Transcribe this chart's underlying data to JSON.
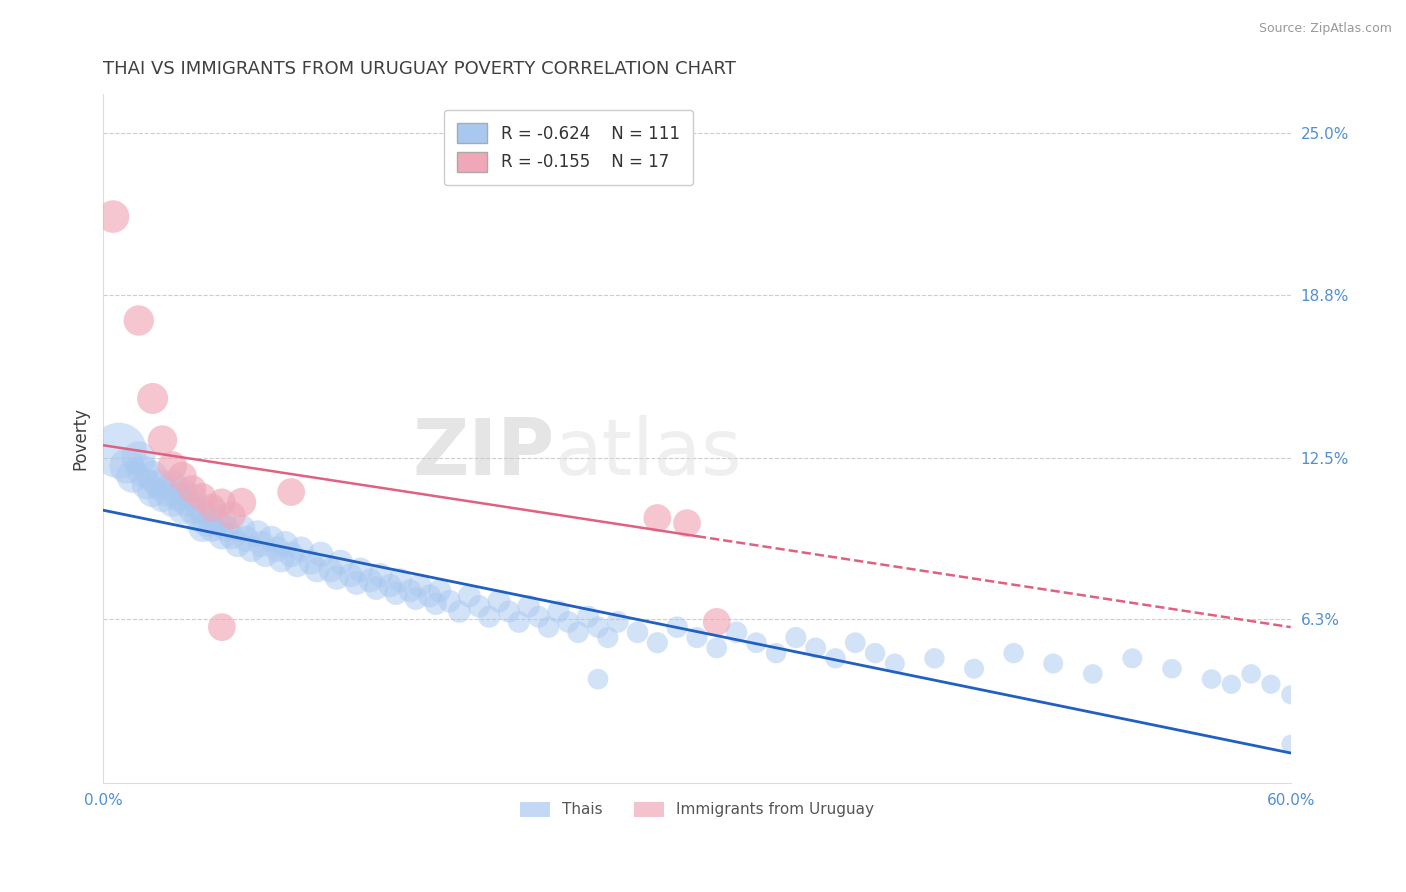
{
  "title": "THAI VS IMMIGRANTS FROM URUGUAY POVERTY CORRELATION CHART",
  "source": "Source: ZipAtlas.com",
  "ylabel": "Poverty",
  "xlim": [
    0.0,
    0.6
  ],
  "ylim": [
    0.0,
    0.265
  ],
  "xticks": [
    0.0,
    0.1,
    0.2,
    0.3,
    0.4,
    0.5,
    0.6
  ],
  "xticklabels": [
    "0.0%",
    "",
    "",
    "",
    "",
    "",
    "60.0%"
  ],
  "yticks": [
    0.063,
    0.125,
    0.188,
    0.25
  ],
  "yticklabels": [
    "6.3%",
    "12.5%",
    "18.8%",
    "25.0%"
  ],
  "grid_color": "#c8c8c8",
  "background_color": "#ffffff",
  "watermark_zip": "ZIP",
  "watermark_atlas": "atlas",
  "legend_r1": "R = -0.624",
  "legend_n1": "N = 111",
  "legend_r2": "R = -0.155",
  "legend_n2": "N = 17",
  "color_thai": "#a8c8f0",
  "color_uruguay": "#f0a8b8",
  "color_thai_line": "#2060c0",
  "color_uruguay_line": "#e06080",
  "title_color": "#404040",
  "ylabel_color": "#404040",
  "tick_label_color": "#5090d0",
  "source_color": "#999999",
  "legend_text_color": "#333333",
  "thai_x": [
    0.008,
    0.012,
    0.015,
    0.018,
    0.02,
    0.022,
    0.025,
    0.025,
    0.028,
    0.03,
    0.032,
    0.035,
    0.035,
    0.038,
    0.04,
    0.04,
    0.042,
    0.045,
    0.045,
    0.048,
    0.05,
    0.05,
    0.052,
    0.055,
    0.055,
    0.058,
    0.06,
    0.06,
    0.062,
    0.065,
    0.068,
    0.07,
    0.072,
    0.075,
    0.078,
    0.08,
    0.082,
    0.085,
    0.088,
    0.09,
    0.092,
    0.095,
    0.098,
    0.1,
    0.105,
    0.108,
    0.11,
    0.115,
    0.118,
    0.12,
    0.125,
    0.128,
    0.13,
    0.135,
    0.138,
    0.14,
    0.145,
    0.148,
    0.15,
    0.155,
    0.158,
    0.16,
    0.165,
    0.168,
    0.17,
    0.175,
    0.18,
    0.185,
    0.19,
    0.195,
    0.2,
    0.205,
    0.21,
    0.215,
    0.22,
    0.225,
    0.23,
    0.235,
    0.24,
    0.245,
    0.25,
    0.255,
    0.26,
    0.27,
    0.28,
    0.29,
    0.3,
    0.31,
    0.32,
    0.33,
    0.34,
    0.35,
    0.36,
    0.37,
    0.38,
    0.39,
    0.4,
    0.42,
    0.44,
    0.46,
    0.48,
    0.5,
    0.52,
    0.54,
    0.56,
    0.57,
    0.58,
    0.59,
    0.6,
    0.6,
    0.25
  ],
  "thai_y": [
    0.128,
    0.122,
    0.118,
    0.125,
    0.12,
    0.115,
    0.118,
    0.112,
    0.115,
    0.11,
    0.112,
    0.108,
    0.115,
    0.11,
    0.105,
    0.112,
    0.108,
    0.105,
    0.11,
    0.102,
    0.098,
    0.105,
    0.1,
    0.098,
    0.105,
    0.1,
    0.095,
    0.102,
    0.098,
    0.095,
    0.092,
    0.098,
    0.094,
    0.09,
    0.096,
    0.092,
    0.088,
    0.094,
    0.09,
    0.086,
    0.092,
    0.088,
    0.084,
    0.09,
    0.085,
    0.082,
    0.088,
    0.082,
    0.079,
    0.085,
    0.08,
    0.077,
    0.082,
    0.078,
    0.075,
    0.08,
    0.076,
    0.073,
    0.078,
    0.074,
    0.071,
    0.076,
    0.072,
    0.069,
    0.074,
    0.07,
    0.066,
    0.072,
    0.068,
    0.064,
    0.07,
    0.066,
    0.062,
    0.068,
    0.064,
    0.06,
    0.066,
    0.062,
    0.058,
    0.064,
    0.06,
    0.056,
    0.062,
    0.058,
    0.054,
    0.06,
    0.056,
    0.052,
    0.058,
    0.054,
    0.05,
    0.056,
    0.052,
    0.048,
    0.054,
    0.05,
    0.046,
    0.048,
    0.044,
    0.05,
    0.046,
    0.042,
    0.048,
    0.044,
    0.04,
    0.038,
    0.042,
    0.038,
    0.034,
    0.015,
    0.04
  ],
  "thai_size": [
    200,
    80,
    70,
    75,
    65,
    60,
    65,
    60,
    60,
    58,
    55,
    55,
    55,
    52,
    52,
    55,
    50,
    50,
    52,
    48,
    48,
    52,
    48,
    48,
    50,
    46,
    46,
    50,
    46,
    45,
    45,
    48,
    44,
    44,
    46,
    44,
    42,
    44,
    42,
    42,
    44,
    42,
    40,
    42,
    40,
    40,
    42,
    40,
    38,
    40,
    38,
    37,
    40,
    38,
    36,
    38,
    36,
    35,
    38,
    35,
    34,
    36,
    35,
    33,
    35,
    34,
    33,
    34,
    33,
    32,
    34,
    32,
    31,
    33,
    31,
    30,
    32,
    31,
    30,
    32,
    30,
    29,
    31,
    30,
    29,
    30,
    29,
    28,
    30,
    28,
    27,
    29,
    28,
    27,
    28,
    27,
    26,
    27,
    26,
    27,
    26,
    25,
    26,
    25,
    25,
    24,
    25,
    24,
    24,
    23,
    28
  ],
  "uruguay_x": [
    0.005,
    0.018,
    0.025,
    0.03,
    0.035,
    0.04,
    0.045,
    0.05,
    0.055,
    0.06,
    0.065,
    0.07,
    0.095,
    0.28,
    0.295,
    0.31,
    0.06
  ],
  "uruguay_y": [
    0.218,
    0.178,
    0.148,
    0.132,
    0.122,
    0.118,
    0.113,
    0.11,
    0.106,
    0.108,
    0.103,
    0.108,
    0.112,
    0.102,
    0.1,
    0.062,
    0.06
  ],
  "uruguay_size": [
    55,
    48,
    50,
    45,
    45,
    44,
    42,
    42,
    40,
    40,
    40,
    44,
    40,
    40,
    40,
    40,
    40
  ]
}
